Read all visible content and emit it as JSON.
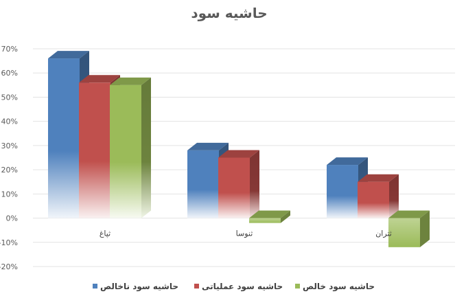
{
  "chart_data": {
    "type": "bar",
    "title": "حاشیه سود",
    "categories": [
      "ثپاغ",
      "ثنوسا",
      "ثتران"
    ],
    "y_ticks": [
      "70%",
      "60%",
      "50%",
      "40%",
      "30%",
      "20%",
      "10%",
      "0%",
      "-10%",
      "-20%"
    ],
    "ylim": [
      -20,
      70
    ],
    "grid": true,
    "legend_position": "bottom",
    "series": [
      {
        "name": "حاشیه سود ناخالص",
        "values": [
          66,
          28,
          22
        ],
        "color": "#4f81bd"
      },
      {
        "name": "حاشیه سود عملیاتی",
        "values": [
          56,
          25,
          15
        ],
        "color": "#c0504d"
      },
      {
        "name": "حاشیه سود خالص",
        "values": [
          55,
          -2,
          -12
        ],
        "color": "#9bbb59"
      }
    ]
  }
}
